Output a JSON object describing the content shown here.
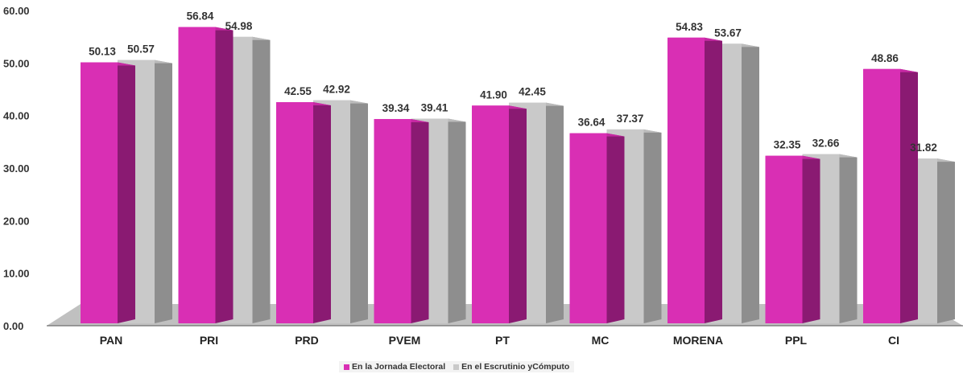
{
  "chart_data": {
    "type": "bar",
    "categories": [
      "PAN",
      "PRI",
      "PRD",
      "PVEM",
      "PT",
      "MC",
      "MORENA",
      "PPL",
      "CI"
    ],
    "series": [
      {
        "name": "En la Jornada Electoral",
        "values": [
          50.13,
          56.84,
          42.55,
          39.34,
          41.9,
          36.64,
          54.83,
          32.35,
          48.86
        ]
      },
      {
        "name": "En el Escrutinio yCómputo",
        "values": [
          50.57,
          54.98,
          42.92,
          39.41,
          42.45,
          37.37,
          53.67,
          32.66,
          31.82
        ]
      }
    ],
    "data_labels": [
      [
        "50.13",
        "56.84",
        "42.55",
        "39.34",
        "41.90",
        "36.64",
        "54.83",
        "32.35",
        "48.86"
      ],
      [
        "50.57",
        "54.98",
        "42.92",
        "39.41",
        "42.45",
        "37.37",
        "53.67",
        "32.66",
        "31.82"
      ]
    ],
    "yticks": [
      "0.00",
      "10.00",
      "20.00",
      "30.00",
      "40.00",
      "50.00",
      "60.00"
    ],
    "ylim": [
      0,
      60
    ],
    "grid": false,
    "legend_position": "bottom",
    "colors": {
      "series1": "#d92fb4",
      "series1_side": "#8a1a72",
      "series2": "#c9c9c9",
      "series2_side": "#8e8e8e",
      "floor": "#b5b5b5"
    }
  },
  "legend": {
    "item1": "En la Jornada Electoral",
    "item2": "En el Escrutinio yCómputo"
  }
}
